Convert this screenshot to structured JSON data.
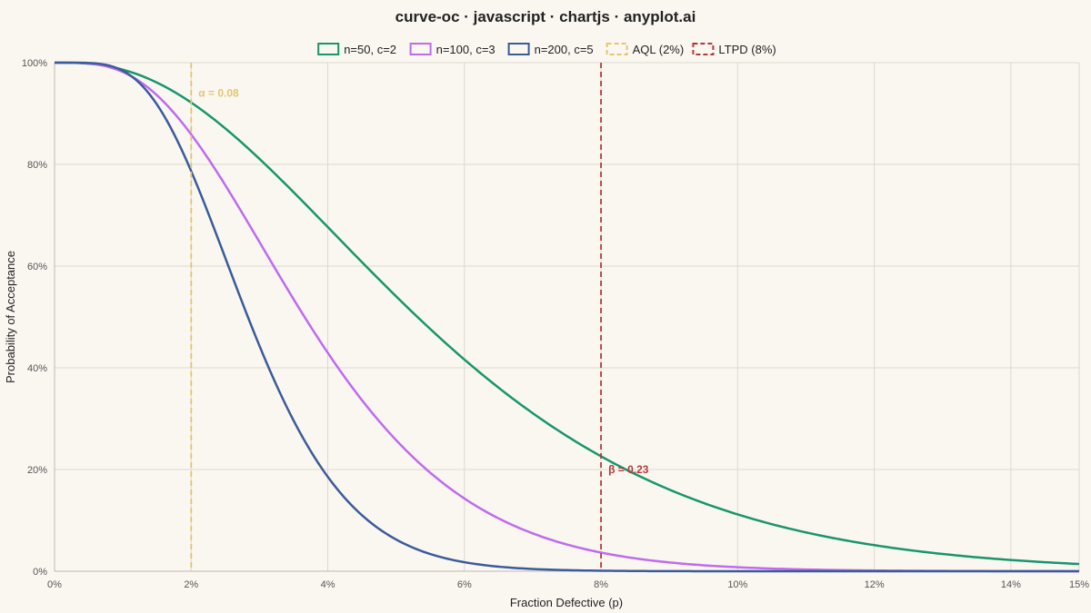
{
  "title": "curve-oc · javascript · chartjs · anyplot.ai",
  "chart_data": {
    "type": "line",
    "xlabel": "Fraction Defective (p)",
    "ylabel": "Probability of Acceptance",
    "xlim": [
      0,
      0.15
    ],
    "ylim": [
      0,
      1
    ],
    "x_ticks": [
      0,
      0.02,
      0.04,
      0.06,
      0.08,
      0.1,
      0.12,
      0.14,
      0.15
    ],
    "x_tick_labels": [
      "0%",
      "2%",
      "4%",
      "6%",
      "8%",
      "10%",
      "12%",
      "14%",
      "15%"
    ],
    "y_ticks": [
      0,
      0.2,
      0.4,
      0.6,
      0.8,
      1.0
    ],
    "y_tick_labels": [
      "0%",
      "20%",
      "40%",
      "60%",
      "80%",
      "100%"
    ],
    "grid": true,
    "legend_position": "top-center",
    "series": [
      {
        "name": "n=50, c=2",
        "n": 50,
        "c": 2,
        "color": "#17966b"
      },
      {
        "name": "n=100, c=3",
        "n": 100,
        "c": 3,
        "color": "#c06af0"
      },
      {
        "name": "n=200, c=5",
        "n": 200,
        "c": 5,
        "color": "#3a5b9a"
      }
    ],
    "reference_lines": [
      {
        "name": "AQL (2%)",
        "x": 0.02,
        "color": "#e4c56e",
        "style": "dashed"
      },
      {
        "name": "LTPD (8%)",
        "x": 0.08,
        "color": "#b33a3a",
        "style": "dashed"
      }
    ],
    "annotations": [
      {
        "text": "α = 0.08",
        "x": 0.02,
        "y": 0.94,
        "color": "#e4c56e"
      },
      {
        "text": "β = 0.23",
        "x": 0.08,
        "y": 0.2,
        "color": "#b33a3a"
      }
    ]
  }
}
